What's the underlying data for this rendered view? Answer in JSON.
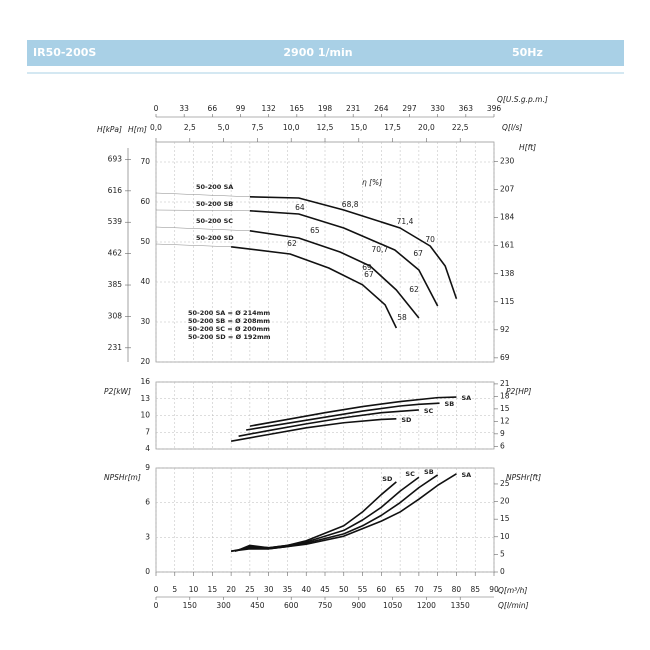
{
  "header": {
    "model": "IR50-200S",
    "speed": "2900 1/min",
    "frequency": "50Hz"
  },
  "chart_data": [
    {
      "type": "line",
      "xlim": [
        0,
        90
      ],
      "ylim": [
        20,
        75
      ],
      "yticks": [
        20,
        30,
        40,
        50,
        60,
        70
      ],
      "ylabel": "H[m]",
      "y2label": "H[kPa]",
      "y2lim": [
        196.2,
        735.8
      ],
      "y2ticks": [
        231,
        308,
        385,
        462,
        539,
        616,
        693
      ],
      "y3label": "H[ft]",
      "y3lim": [
        65.6,
        246.1
      ],
      "y3ticks": [
        69,
        92,
        115,
        138,
        161,
        184,
        207,
        230
      ],
      "x2label": "Q[l/s]",
      "x2lim": [
        0,
        25
      ],
      "x2ticks": [
        {
          "value": 0,
          "label": "0,0"
        },
        {
          "value": 2.5,
          "label": "2,5"
        },
        {
          "value": 5,
          "label": "5,0"
        },
        {
          "value": 7.5,
          "label": "7,5"
        },
        {
          "value": 10,
          "label": "10,0"
        },
        {
          "value": 12.5,
          "label": "12,5"
        },
        {
          "value": 15,
          "label": "15,0"
        },
        {
          "value": 17.5,
          "label": "17,5"
        },
        {
          "value": 20,
          "label": "20,0"
        },
        {
          "value": 22.5,
          "label": "22,5"
        }
      ],
      "x3label": "Q[U.S.g.p.m.]",
      "x3lim": [
        0,
        396
      ],
      "x3ticks": [
        0,
        33,
        66,
        99,
        132,
        165,
        198,
        231,
        264,
        297,
        330,
        363,
        396
      ],
      "grid": true,
      "series": [
        {
          "name": "50-200 SA",
          "color": "#111111",
          "x": [
            25,
            38,
            50,
            65,
            73,
            77,
            80
          ],
          "values": [
            61.3,
            61,
            58,
            53.5,
            49,
            44,
            35.8
          ]
        },
        {
          "name": "50-200 SB",
          "color": "#111111",
          "x": [
            25,
            38,
            50,
            63.6,
            70,
            75
          ],
          "values": [
            57.8,
            57,
            53.5,
            48,
            43,
            34
          ]
        },
        {
          "name": "50-200 SC",
          "color": "#111111",
          "x": [
            25,
            38,
            49,
            57,
            64,
            70
          ],
          "values": [
            52.8,
            51,
            47.5,
            44,
            38,
            31
          ]
        },
        {
          "name": "50-200 SD",
          "color": "#111111",
          "x": [
            20,
            35.7,
            46,
            55,
            61,
            64
          ],
          "values": [
            48.8,
            47,
            43.5,
            39.3,
            34.3,
            28.5
          ]
        }
      ],
      "annotation_title": "η [%]",
      "annotations": [
        {
          "text": "64",
          "x": 38.3,
          "y": 58.5
        },
        {
          "text": "68,8",
          "x": 51.7,
          "y": 59.3
        },
        {
          "text": "71,4",
          "x": 66.3,
          "y": 55
        },
        {
          "text": "70",
          "x": 73,
          "y": 50.5
        },
        {
          "text": "65",
          "x": 42.3,
          "y": 52.8
        },
        {
          "text": "67",
          "x": 69.8,
          "y": 47
        },
        {
          "text": "62",
          "x": 36.2,
          "y": 49.5
        },
        {
          "text": "70,7",
          "x": 59.6,
          "y": 48
        },
        {
          "text": "69",
          "x": 56.2,
          "y": 43.5
        },
        {
          "text": "67",
          "x": 56.7,
          "y": 41.8
        },
        {
          "text": "62",
          "x": 68.7,
          "y": 38
        },
        {
          "text": "58",
          "x": 65.5,
          "y": 31
        }
      ],
      "notes": [
        "50-200 SA = Ø 214mm",
        "50-200 SB = Ø 208mm",
        "50-200 SC = Ø 200mm",
        "50-200 SD = Ø 192mm"
      ]
    },
    {
      "type": "line",
      "xlim": [
        0,
        90
      ],
      "ylim": [
        4,
        16
      ],
      "yticks": [
        4,
        7,
        10,
        13,
        16
      ],
      "ylabel": "P2[kW]",
      "y2label": "P2[HP]",
      "y2lim": [
        5.36,
        21.46
      ],
      "y2ticks": [
        6,
        9,
        12,
        15,
        18,
        21
      ],
      "grid": true,
      "series": [
        {
          "name": "SA",
          "color": "#111111",
          "x": [
            25,
            35,
            45,
            55,
            65,
            75,
            80
          ],
          "values": [
            8.1,
            9.3,
            10.5,
            11.6,
            12.5,
            13.2,
            13.3
          ]
        },
        {
          "name": "SB",
          "color": "#111111",
          "x": [
            24,
            35,
            45,
            55,
            65,
            70,
            75.5
          ],
          "values": [
            7.4,
            8.6,
            9.7,
            10.8,
            11.7,
            12,
            12.2
          ]
        },
        {
          "name": "SC",
          "color": "#111111",
          "x": [
            22,
            30,
            40,
            50,
            60,
            70
          ],
          "values": [
            6.3,
            7.3,
            8.5,
            9.6,
            10.5,
            11
          ]
        },
        {
          "name": "SD",
          "color": "#111111",
          "x": [
            20,
            30,
            40,
            50,
            60,
            64
          ],
          "values": [
            5.4,
            6.6,
            7.8,
            8.7,
            9.3,
            9.4
          ]
        }
      ]
    },
    {
      "type": "line",
      "xlim": [
        0,
        90
      ],
      "xlabel": "Q[m³/h]",
      "xticks": [
        0,
        5,
        10,
        15,
        20,
        25,
        30,
        35,
        40,
        45,
        50,
        55,
        60,
        65,
        70,
        75,
        80,
        85,
        90
      ],
      "x2label": "Q[l/min]",
      "x2lim": [
        0,
        1500
      ],
      "x2ticks": [
        0,
        150,
        300,
        450,
        600,
        750,
        900,
        1050,
        1200,
        1350
      ],
      "ylim": [
        0,
        9
      ],
      "yticks": [
        0,
        3,
        6,
        9
      ],
      "ylabel": "NPSHr[m]",
      "y2label": "NPSHr[ft]",
      "y2lim": [
        0,
        29.53
      ],
      "y2ticks": [
        0,
        5,
        10,
        15,
        20,
        25
      ],
      "grid": true,
      "series": [
        {
          "name": "SA",
          "color": "#111111",
          "x": [
            20,
            25,
            30,
            35,
            40,
            50,
            60,
            65,
            70,
            75,
            80
          ],
          "values": [
            1.8,
            2.0,
            2.0,
            2.2,
            2.4,
            3.1,
            4.4,
            5.2,
            6.3,
            7.5,
            8.5
          ]
        },
        {
          "name": "SB",
          "color": "#111111",
          "x": [
            20,
            25,
            30,
            35,
            40,
            50,
            55,
            60,
            65,
            70,
            75
          ],
          "values": [
            1.8,
            2.1,
            2.0,
            2.2,
            2.5,
            3.3,
            4.0,
            4.9,
            6.0,
            7.3,
            8.4
          ]
        },
        {
          "name": "SC",
          "color": "#111111",
          "x": [
            21,
            25,
            30,
            35,
            40,
            50,
            55,
            60,
            65,
            70
          ],
          "values": [
            1.8,
            2.2,
            2.1,
            2.3,
            2.6,
            3.6,
            4.5,
            5.6,
            7.0,
            8.2
          ]
        },
        {
          "name": "SD",
          "color": "#111111",
          "x": [
            22,
            25,
            30,
            35,
            40,
            50,
            55,
            60,
            64
          ],
          "values": [
            1.9,
            2.3,
            2.1,
            2.3,
            2.7,
            4.0,
            5.2,
            6.7,
            7.8
          ]
        }
      ]
    }
  ]
}
